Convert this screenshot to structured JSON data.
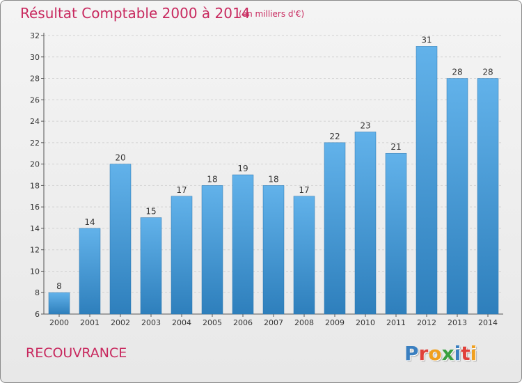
{
  "header": {
    "title": "Résultat Comptable 2000 à 2014",
    "subtitle": "(en milliers d'€)"
  },
  "footer": {
    "commune": "RECOUVRANCE",
    "logo_text": "Proxiti",
    "logo_letters": [
      {
        "ch": "P",
        "color": "#3a7fc0"
      },
      {
        "ch": "r",
        "color": "#e0403a"
      },
      {
        "ch": "o",
        "color": "#f0a020"
      },
      {
        "ch": "x",
        "color": "#3aa040"
      },
      {
        "ch": "i",
        "color": "#3a7fc0"
      },
      {
        "ch": "t",
        "color": "#e0403a"
      },
      {
        "ch": "i",
        "color": "#f0a020"
      }
    ]
  },
  "colors": {
    "accent_text": "#c8285e",
    "bar_top": "#62b2ea",
    "bar_bottom": "#2e7fbc"
  },
  "chart_data": {
    "type": "bar",
    "categories": [
      "2000",
      "2001",
      "2002",
      "2003",
      "2004",
      "2005",
      "2006",
      "2007",
      "2008",
      "2009",
      "2010",
      "2011",
      "2012",
      "2013",
      "2014"
    ],
    "values": [
      8,
      14,
      20,
      15,
      17,
      18,
      19,
      18,
      17,
      22,
      23,
      21,
      31,
      28,
      28
    ],
    "ylim": [
      6,
      32
    ],
    "yticks": [
      6,
      8,
      10,
      12,
      14,
      16,
      18,
      20,
      22,
      24,
      26,
      28,
      30,
      32
    ],
    "grid": true,
    "data_labels": true
  }
}
